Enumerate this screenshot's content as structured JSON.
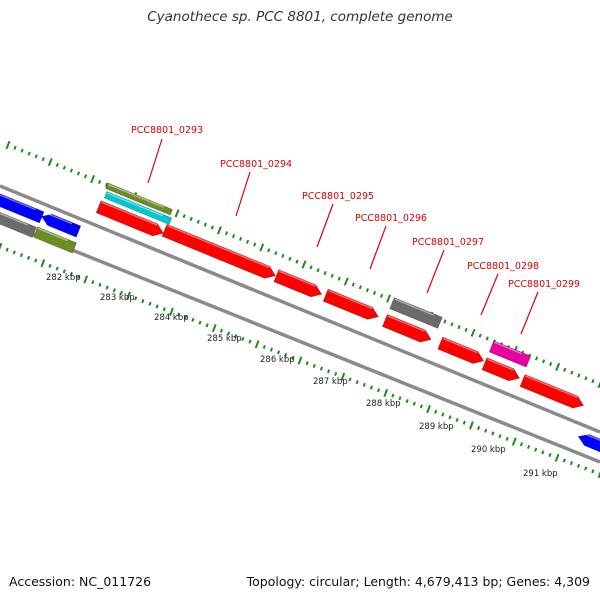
{
  "title": "Cyanothece sp. PCC 8801, complete genome",
  "footer": {
    "accession": "Accession: NC_011726",
    "summary": "Topology: circular; Length: 4,679,413 bp; Genes: 4,309"
  },
  "colors": {
    "forward_cds": "#ff0000",
    "reverse_cds": "#0000ff",
    "other_feature": "#6b6b6b",
    "olive_feature": "#6b8e23",
    "cyan_feature": "#00c8d2",
    "magenta_feature": "#e600a0",
    "label": "#dd0000",
    "ticks": "#1a8c1a",
    "backbone": "#8a8a8a"
  },
  "ruler": {
    "labels": [
      "282 kbp",
      "283 kbp",
      "284 kbp",
      "285 kbp",
      "286 kbp",
      "287 kbp",
      "288 kbp",
      "289 kbp",
      "290 kbp",
      "291 kbp"
    ]
  },
  "genes": [
    {
      "label": "PCC8801_0293"
    },
    {
      "label": "PCC8801_0294"
    },
    {
      "label": "PCC8801_0295"
    },
    {
      "label": "PCC8801_0296"
    },
    {
      "label": "PCC8801_0297"
    },
    {
      "label": "PCC8801_0298"
    },
    {
      "label": "PCC8801_0299"
    }
  ]
}
